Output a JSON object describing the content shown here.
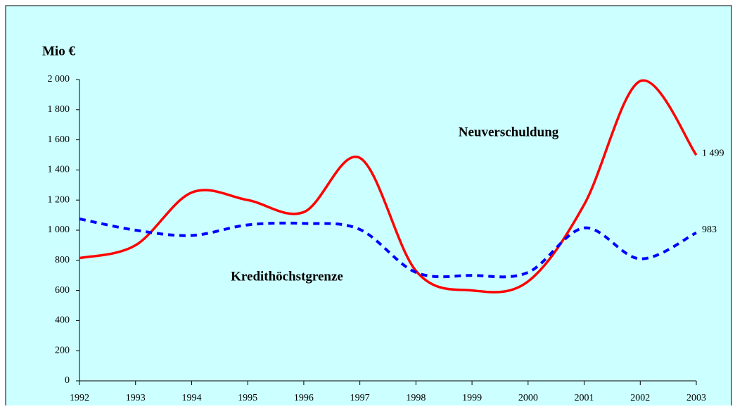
{
  "chart_data": {
    "type": "line",
    "y_label": "Mio €",
    "annotations": [
      "Neuverschuldung",
      "Kredithöchstgrenze"
    ],
    "categories": [
      "1992",
      "1993",
      "1994",
      "1995",
      "1996",
      "1997",
      "1998",
      "1999",
      "2000",
      "2001",
      "2002",
      "2003"
    ],
    "series": [
      {
        "name": "Neuverschuldung",
        "color": "#ff0000",
        "dashed": false,
        "values": [
          815,
          900,
          1250,
          1200,
          1120,
          1480,
          730,
          600,
          660,
          1170,
          1990,
          1499
        ],
        "value_labels": [
          null,
          null,
          null,
          null,
          null,
          null,
          null,
          null,
          null,
          null,
          null,
          "1 499"
        ]
      },
      {
        "name": "Kredithöchstgrenze",
        "color": "#0000ff",
        "dashed": true,
        "values": [
          1075,
          1000,
          965,
          1035,
          1045,
          1005,
          720,
          700,
          720,
          1015,
          810,
          983
        ],
        "value_labels": [
          null,
          null,
          null,
          null,
          null,
          null,
          null,
          null,
          null,
          null,
          null,
          "983"
        ]
      }
    ],
    "ylim": [
      0,
      2000
    ],
    "yticks": [
      0,
      200,
      400,
      600,
      800,
      {
        "value": 1000,
        "label": "1 000"
      },
      {
        "value": 1200,
        "label": "1 200"
      },
      {
        "value": 1400,
        "label": "1 400"
      },
      {
        "value": 1600,
        "label": "1 600"
      },
      {
        "value": 1800,
        "label": "1 800"
      },
      {
        "value": 2000,
        "label": "2 000"
      }
    ],
    "grid": false
  }
}
